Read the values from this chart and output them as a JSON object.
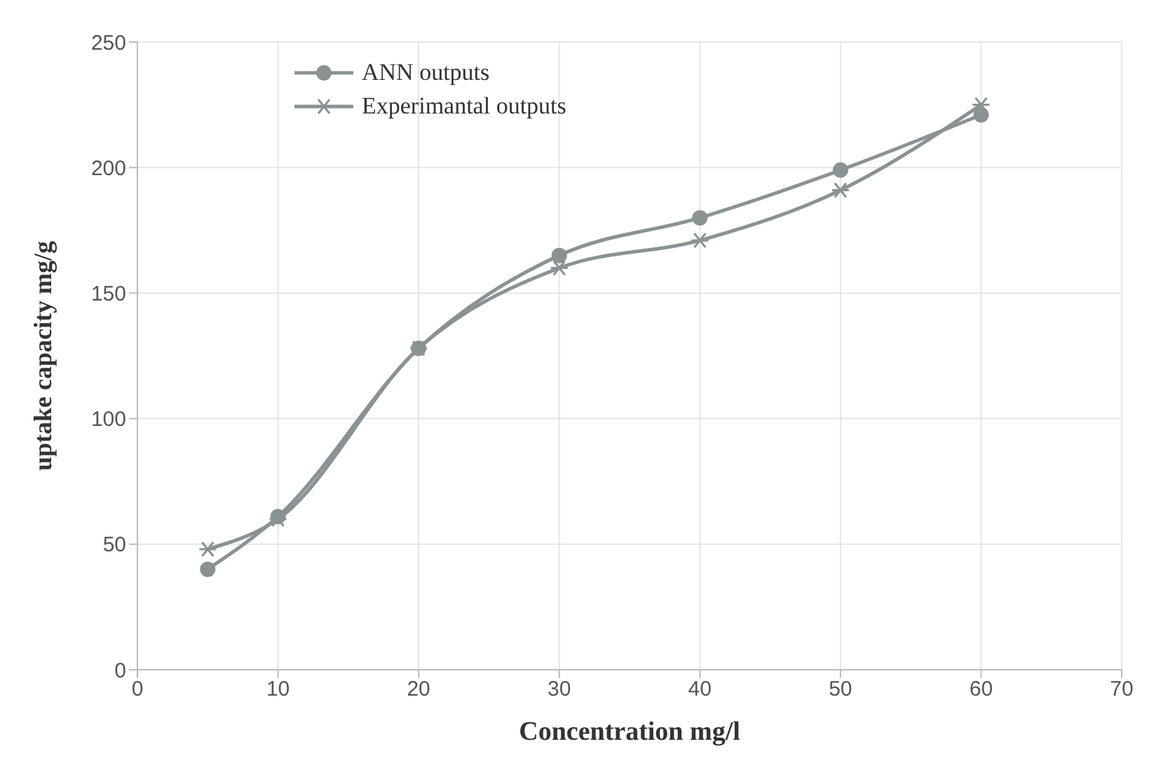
{
  "chart_data": {
    "type": "line",
    "xlabel": "Concentration mg/l",
    "ylabel": "uptake capacity mg/g",
    "xlim": [
      0,
      70
    ],
    "xticks": [
      0,
      10,
      20,
      30,
      40,
      50,
      60,
      70
    ],
    "ylim": [
      0,
      250
    ],
    "yticks": [
      0,
      50,
      100,
      150,
      200,
      250
    ],
    "x": [
      5,
      10,
      20,
      30,
      40,
      50,
      60
    ],
    "series": [
      {
        "name": "ANN outputs",
        "color": "#8a9294",
        "marker": "circle",
        "values": [
          40,
          61,
          128,
          165,
          180,
          199,
          221
        ]
      },
      {
        "name": "Experimantal outputs",
        "color": "#8a9294",
        "marker": "cross",
        "values": [
          48,
          60,
          128,
          160,
          171,
          191,
          225
        ]
      }
    ],
    "grid": true,
    "legend": "top left",
    "line_style": "solid"
  }
}
